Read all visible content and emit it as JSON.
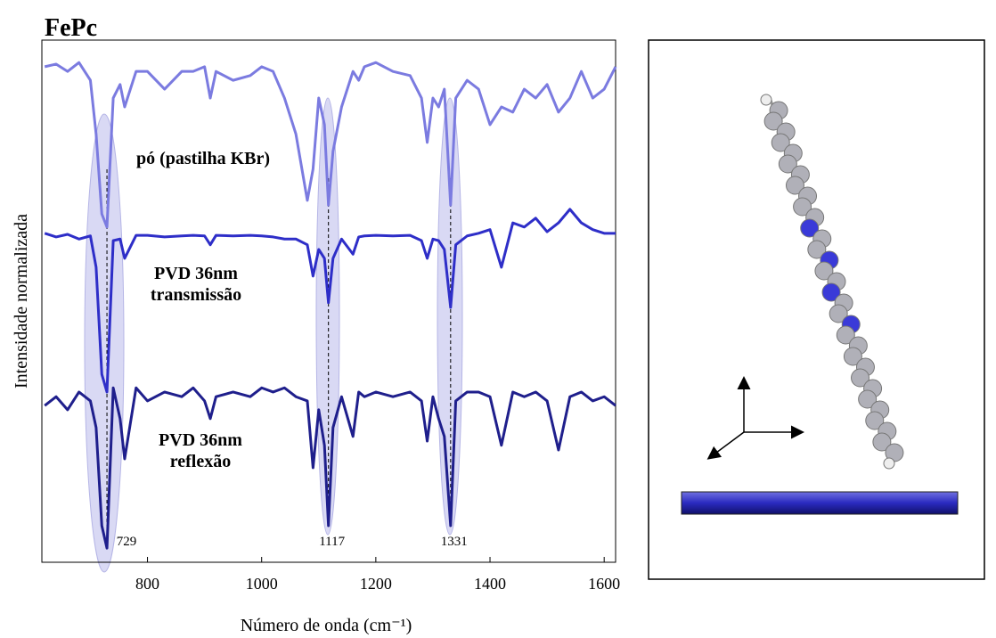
{
  "chart_data": {
    "type": "line",
    "title": "FePc",
    "xlabel": "Número de onda (cm⁻¹)",
    "ylabel": "Intensidade normalizada",
    "x": [
      620,
      640,
      660,
      680,
      700,
      710,
      720,
      729,
      740,
      752,
      760,
      780,
      800,
      830,
      860,
      880,
      900,
      910,
      920,
      950,
      980,
      1000,
      1020,
      1040,
      1060,
      1080,
      1090,
      1100,
      1110,
      1117,
      1125,
      1140,
      1160,
      1170,
      1180,
      1200,
      1230,
      1260,
      1280,
      1290,
      1300,
      1310,
      1320,
      1331,
      1340,
      1360,
      1380,
      1400,
      1420,
      1440,
      1460,
      1480,
      1500,
      1520,
      1540,
      1560,
      1580,
      1600,
      1620
    ],
    "series": [
      {
        "name": "pó (pastilha KBr)",
        "color": "#7b7be0",
        "values": [
          94.9,
          95.4,
          94,
          95.7,
          92.3,
          82,
          66.7,
          64.2,
          88.9,
          91.5,
          87.2,
          94,
          94,
          90.6,
          94,
          94,
          94.9,
          88.9,
          94,
          92.3,
          93.2,
          94.9,
          94,
          88.9,
          82,
          69.3,
          75.3,
          88.9,
          83.8,
          68.4,
          78.7,
          87.2,
          94,
          92.3,
          94.9,
          95.7,
          94,
          93.2,
          88.9,
          80.4,
          88.9,
          87.2,
          90.6,
          68.4,
          88.9,
          92.3,
          90.6,
          83.8,
          87.2,
          86.2,
          90.6,
          88.9,
          91.5,
          86.2,
          88.9,
          94,
          88.9,
          90.6,
          94.9
        ]
      },
      {
        "name": "PVD 36nm transmissão",
        "color": "#2e2ec8",
        "values": [
          63,
          62.3,
          62.8,
          61.9,
          62.5,
          56.5,
          36,
          32.6,
          61.6,
          61.9,
          58.2,
          62.6,
          62.6,
          62.3,
          62.5,
          62.6,
          62.5,
          60.8,
          62.6,
          62.5,
          62.6,
          62.5,
          62.3,
          61.9,
          61.9,
          60.8,
          54.8,
          59.9,
          58.2,
          49.7,
          58.2,
          61.9,
          59,
          62.3,
          62.5,
          62.6,
          62.5,
          62.6,
          61.6,
          58.2,
          61.9,
          61.6,
          59.9,
          48.8,
          60.8,
          62.5,
          63,
          63.7,
          56.5,
          65,
          64.2,
          65.9,
          63.3,
          65,
          67.6,
          65,
          63.7,
          63,
          63
        ]
      },
      {
        "name": "PVD 36nm reflexão",
        "color": "#1f1f8c",
        "values": [
          30,
          31.7,
          29.2,
          32.6,
          30.9,
          25.8,
          7,
          2.7,
          33.4,
          27.5,
          19.8,
          33.4,
          30.9,
          32.6,
          31.7,
          33.4,
          30.9,
          27.5,
          31.7,
          32.6,
          31.7,
          33.4,
          32.6,
          33.4,
          31.7,
          30.9,
          18.1,
          29.2,
          22.4,
          7,
          25.8,
          31.7,
          24.1,
          32.6,
          31.7,
          32.6,
          31.7,
          32.6,
          30.9,
          23.2,
          31.7,
          27.5,
          24.1,
          7,
          30.9,
          32.6,
          32.6,
          31.7,
          22.4,
          32.6,
          31.7,
          32.6,
          30.9,
          21.5,
          31.7,
          32.6,
          30.9,
          31.7,
          30
        ]
      }
    ],
    "peaks": [
      729,
      1117,
      1331
    ],
    "xlim": [
      615,
      1620
    ],
    "xticks": [
      800,
      1000,
      1200,
      1400,
      1600
    ],
    "ylim": [
      0,
      100
    ]
  }
}
